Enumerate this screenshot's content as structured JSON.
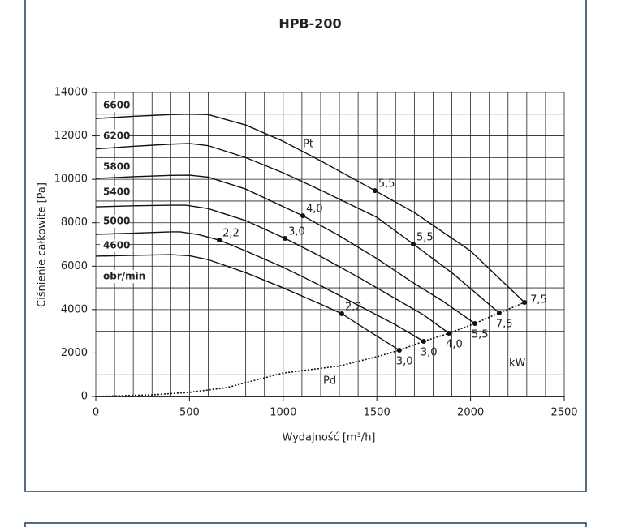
{
  "chart_data": {
    "type": "line",
    "title": "HPB-200",
    "x_label": "Wydajność [m³/h]",
    "y_label": "Ciśnienie całkowite [Pa]",
    "xlim": [
      0,
      2500
    ],
    "ylim": [
      0,
      14000
    ],
    "xticks": [
      0,
      500,
      1000,
      1500,
      2000,
      2500
    ],
    "yticks": [
      0,
      2000,
      4000,
      6000,
      8000,
      10000,
      12000,
      14000
    ],
    "xgrid": [
      0,
      100,
      200,
      300,
      400,
      500,
      600,
      700,
      800,
      900,
      1000,
      1100,
      1200,
      1300,
      1400,
      1500,
      1600,
      1700,
      1800,
      1900,
      2000,
      2100,
      2200,
      2300,
      2400,
      2500
    ],
    "ygrid": [
      0,
      1000,
      2000,
      3000,
      4000,
      5000,
      6000,
      7000,
      8000,
      9000,
      10000,
      11000,
      12000,
      13000,
      14000
    ],
    "speed_unit": "obr/min",
    "pt_label": "Pt",
    "power_unit": "kW",
    "marker_color": "#c8414b",
    "series": [
      {
        "name": "6600",
        "color": "#111111",
        "x": [
          0,
          200,
          400,
          500,
          600,
          800,
          1000,
          1200,
          1490,
          1700,
          2000,
          2288
        ],
        "values": [
          12800,
          12900,
          12980,
          13000,
          12980,
          12500,
          11750,
          10850,
          9480,
          8470,
          6700,
          4330
        ],
        "markers": {
          "x": [
            1490,
            2288
          ],
          "values": [
            9480,
            4330
          ],
          "labels": [
            "5,5",
            "7,5"
          ]
        }
      },
      {
        "name": "6200",
        "color": "#111111",
        "x": [
          0,
          200,
          400,
          500,
          600,
          800,
          1000,
          1200,
          1500,
          1694,
          1900,
          2153
        ],
        "values": [
          11400,
          11520,
          11620,
          11650,
          11550,
          11000,
          10300,
          9500,
          8250,
          7020,
          5700,
          3845
        ],
        "markers": {
          "x": [
            1694,
            2153
          ],
          "values": [
            7020,
            3845
          ],
          "labels": [
            "5,5",
            "7,5"
          ]
        }
      },
      {
        "name": "5800",
        "color": "#111111",
        "x": [
          0,
          200,
          400,
          500,
          600,
          800,
          1105,
          1300,
          1500,
          1700,
          1850,
          2023
        ],
        "values": [
          10040,
          10120,
          10180,
          10190,
          10100,
          9550,
          8320,
          7400,
          6350,
          5200,
          4400,
          3360
        ],
        "markers": {
          "x": [
            1105,
            2023
          ],
          "values": [
            8320,
            3360
          ],
          "labels": [
            "4,0",
            "5,5"
          ]
        }
      },
      {
        "name": "5400",
        "color": "#111111",
        "x": [
          0,
          200,
          400,
          480,
          600,
          800,
          1010,
          1200,
          1400,
          1600,
          1750,
          1885
        ],
        "values": [
          8735,
          8780,
          8810,
          8810,
          8650,
          8100,
          7280,
          6450,
          5500,
          4500,
          3750,
          2910
        ],
        "markers": {
          "x": [
            1010,
            1885
          ],
          "values": [
            7280,
            2910
          ],
          "labels": [
            "3,0",
            "4,0"
          ]
        }
      },
      {
        "name": "5000",
        "color": "#111111",
        "x": [
          0,
          200,
          400,
          450,
          550,
          659,
          800,
          1000,
          1200,
          1400,
          1600,
          1750
        ],
        "values": [
          7465,
          7520,
          7580,
          7580,
          7450,
          7200,
          6700,
          5950,
          5100,
          4200,
          3300,
          2540
        ],
        "markers": {
          "x": [
            659,
            1750
          ],
          "values": [
            7200,
            2540
          ],
          "labels": [
            "2,2",
            "3,0"
          ]
        }
      },
      {
        "name": "4600",
        "color": "#111111",
        "x": [
          0,
          200,
          400,
          500,
          600,
          800,
          1000,
          1200,
          1313,
          1450,
          1620
        ],
        "values": [
          6460,
          6500,
          6530,
          6480,
          6300,
          5700,
          5000,
          4250,
          3810,
          3050,
          2130
        ],
        "markers": {
          "x": [
            1313,
            1620
          ],
          "values": [
            3810,
            2130
          ],
          "labels": [
            "2,2",
            "3,0"
          ]
        }
      }
    ],
    "pd_curve": {
      "name": "Pd",
      "x": [
        0,
        300,
        500,
        700,
        1000,
        1300,
        1500,
        1620,
        1750,
        1885,
        2023,
        2153,
        2288
      ],
      "values": [
        0,
        75,
        190,
        410,
        1080,
        1400,
        1830,
        2130,
        2540,
        2910,
        3360,
        3845,
        4330
      ]
    }
  }
}
